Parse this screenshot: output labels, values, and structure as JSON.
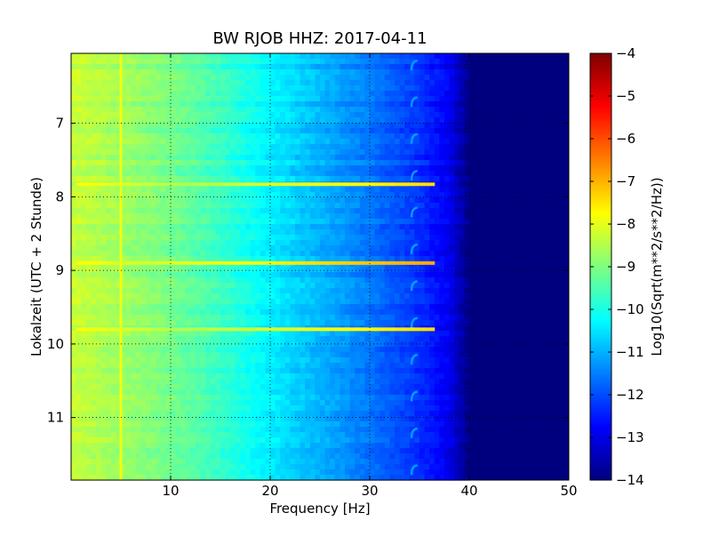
{
  "chart_data": {
    "type": "heatmap",
    "title": "BW RJOB HHZ: 2017-04-11",
    "xlabel": "Frequency [Hz]",
    "ylabel": "Lokalzeit (UTC + 2 Stunde)",
    "xlim": [
      0,
      50
    ],
    "ylim": [
      11.85,
      6.05
    ],
    "y_inverted": true,
    "x_ticks": [
      10,
      20,
      30,
      40,
      50
    ],
    "y_ticks": [
      7,
      8,
      9,
      10,
      11
    ],
    "grid": true,
    "colormap": "jet",
    "colorbar": {
      "label": "Log10(Sqrt(m**2/s**2/Hz))",
      "range": [
        -14,
        -4
      ],
      "ticks": [
        -4,
        -5,
        -6,
        -7,
        -8,
        -9,
        -10,
        -11,
        -12,
        -13,
        -14
      ]
    },
    "spectrum_profile": {
      "frequency_hz": [
        0,
        5,
        10,
        15,
        20,
        25,
        30,
        35,
        38,
        40,
        50
      ],
      "log10_amplitude": [
        -8.3,
        -8.7,
        -9.1,
        -9.7,
        -10.4,
        -11.0,
        -11.6,
        -12.3,
        -12.9,
        -14.0,
        -14.0
      ]
    },
    "features": [
      {
        "label": "narrow line",
        "frequency_hz": 5.0,
        "log10_amplitude": -7.9
      },
      {
        "label": "gliding tone",
        "frequency_hz": 34.5,
        "period_hours": 0.5
      },
      {
        "label": "broadband event",
        "time_h": 7.83,
        "log10_amplitude": -9.0
      },
      {
        "label": "broadband event",
        "time_h": 8.9,
        "log10_amplitude": -8.5
      },
      {
        "label": "broadband event",
        "time_h": 9.8,
        "log10_amplitude": -9.0
      }
    ],
    "colors": {
      "colormap_stops": [
        "#00007f",
        "#0000ff",
        "#007fff",
        "#00ffff",
        "#7fff7f",
        "#ffff00",
        "#ff7f00",
        "#ff0000",
        "#7f0000"
      ]
    }
  }
}
